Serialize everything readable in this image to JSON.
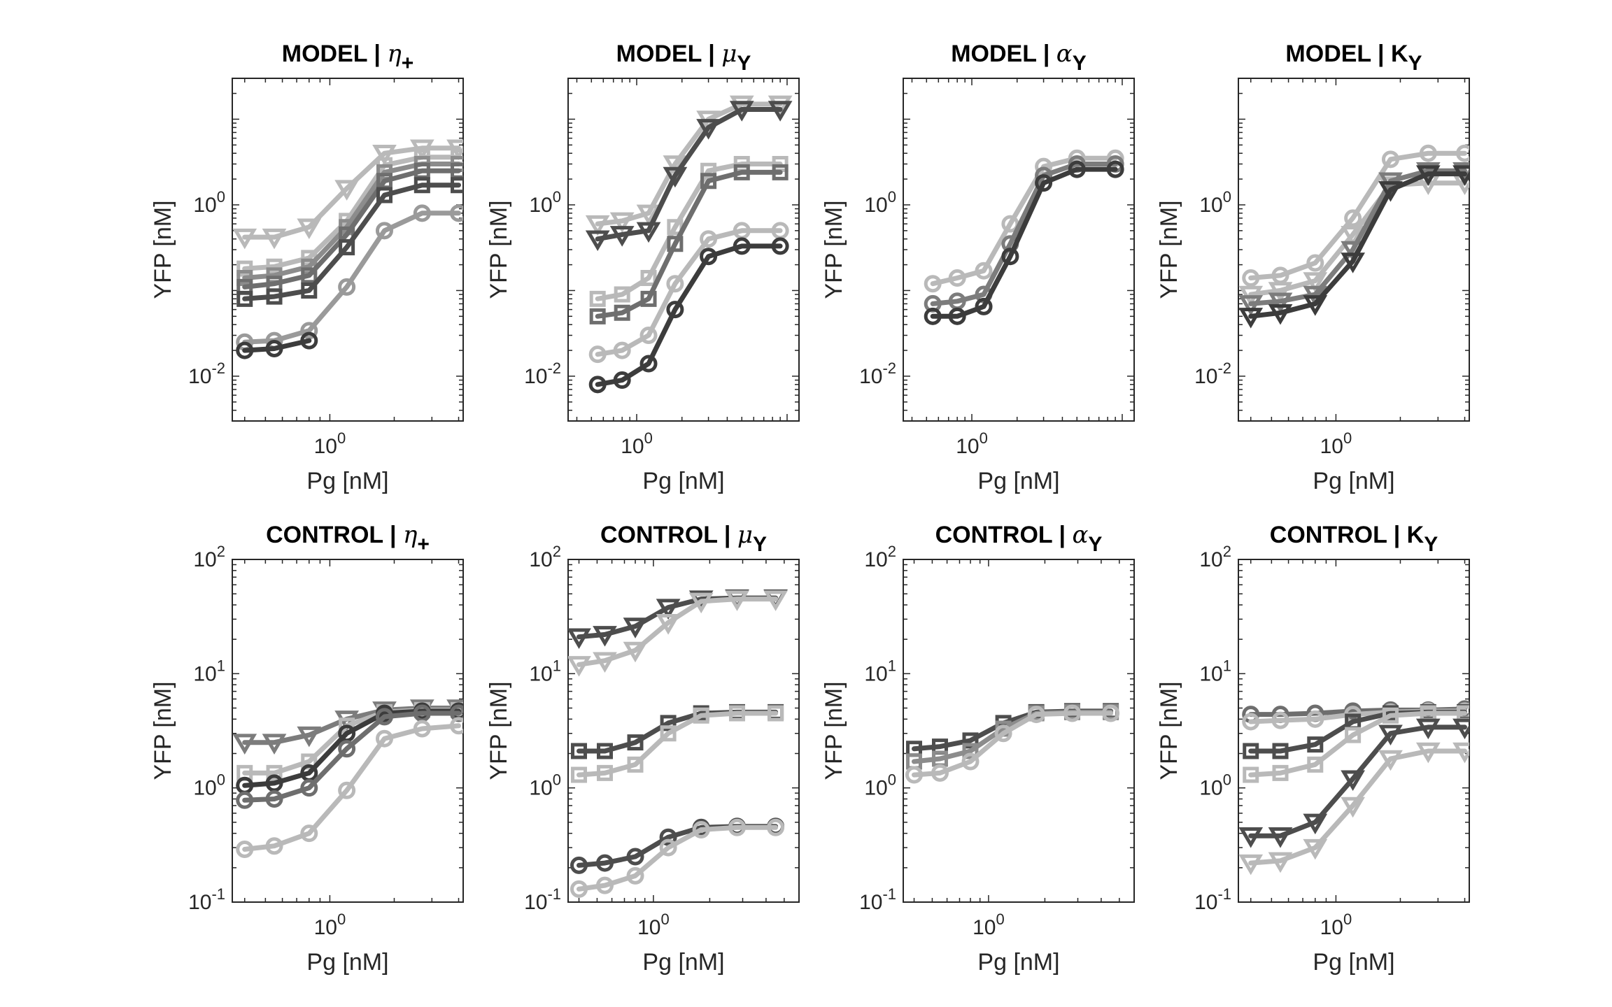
{
  "chart_data": [
    {
      "type": "line",
      "group": "MODEL",
      "title": "MODEL | ",
      "param_symbol": "η",
      "param_sub": "+",
      "xlabel": "Pg [nM]",
      "ylabel": "YFP [nM]",
      "xscale": "log",
      "yscale": "log",
      "xlim": [
        0.35,
        4.2
      ],
      "ylim": [
        0.003,
        30
      ],
      "x_ticks": [
        {
          "v": 1,
          "base": "10",
          "exp": "0"
        }
      ],
      "y_ticks": [
        {
          "v": 1,
          "base": "10",
          "exp": "0"
        },
        {
          "v": 0.01,
          "base": "10",
          "exp": "-2"
        }
      ],
      "x": [
        0.4,
        0.55,
        0.8,
        1.2,
        1.8,
        2.7,
        4.0
      ],
      "series": [
        {
          "marker": "triangle",
          "shade": "#b9b9b9",
          "values": [
            0.42,
            0.42,
            0.55,
            1.55,
            4.0,
            4.6,
            4.6
          ]
        },
        {
          "marker": "square",
          "shade": "#b9b9b9",
          "values": [
            0.18,
            0.19,
            0.24,
            0.65,
            2.9,
            3.6,
            3.6
          ]
        },
        {
          "marker": "square",
          "shade": "#8c8c8c",
          "values": [
            0.14,
            0.15,
            0.19,
            0.55,
            2.4,
            3.0,
            3.0
          ]
        },
        {
          "marker": "square",
          "shade": "#6e6e6e",
          "values": [
            0.11,
            0.12,
            0.15,
            0.45,
            1.9,
            2.5,
            2.5
          ]
        },
        {
          "marker": "square",
          "shade": "#4d4d4d",
          "values": [
            0.08,
            0.085,
            0.1,
            0.32,
            1.3,
            1.7,
            1.7
          ]
        },
        {
          "marker": "circle",
          "shade": "#9a9a9a",
          "values": [
            0.025,
            0.026,
            0.034,
            0.11,
            0.5,
            0.8,
            0.8
          ]
        },
        {
          "marker": "circle",
          "shade": "#3c3c3c",
          "values": [
            0.02,
            0.021,
            0.026,
            null,
            null,
            null,
            null
          ]
        }
      ]
    },
    {
      "type": "line",
      "group": "MODEL",
      "title": "MODEL | ",
      "param_symbol": "μ",
      "param_sub": "Y",
      "xlabel": "Pg [nM]",
      "ylabel": "YFP [nM]",
      "xscale": "log",
      "yscale": "log",
      "xlim": [
        0.35,
        12
      ],
      "ylim": [
        0.003,
        30
      ],
      "x_ticks": [
        {
          "v": 1,
          "base": "10",
          "exp": "0"
        }
      ],
      "y_ticks": [
        {
          "v": 1,
          "base": "10",
          "exp": "0"
        },
        {
          "v": 0.01,
          "base": "10",
          "exp": "-2"
        }
      ],
      "x": [
        0.4,
        0.55,
        0.8,
        1.2,
        1.8,
        3.0,
        5.0,
        9.0
      ],
      "series": [
        {
          "marker": "triangle",
          "shade": "#b9b9b9",
          "values": [
            null,
            0.6,
            0.65,
            0.8,
            3.0,
            10.0,
            15.0,
            15.0
          ]
        },
        {
          "marker": "triangle",
          "shade": "#4d4d4d",
          "values": [
            null,
            0.4,
            0.45,
            0.5,
            2.2,
            8.0,
            13.0,
            13.0
          ]
        },
        {
          "marker": "square",
          "shade": "#b9b9b9",
          "values": [
            null,
            0.08,
            0.09,
            0.14,
            0.55,
            2.5,
            3.0,
            3.0
          ]
        },
        {
          "marker": "square",
          "shade": "#6e6e6e",
          "values": [
            null,
            0.05,
            0.055,
            0.08,
            0.35,
            1.9,
            2.4,
            2.4
          ]
        },
        {
          "marker": "circle",
          "shade": "#b9b9b9",
          "values": [
            null,
            0.018,
            0.02,
            0.03,
            0.12,
            0.4,
            0.5,
            0.5
          ]
        },
        {
          "marker": "circle",
          "shade": "#3c3c3c",
          "values": [
            null,
            0.008,
            0.009,
            0.014,
            0.06,
            0.25,
            0.33,
            0.33
          ]
        }
      ]
    },
    {
      "type": "line",
      "group": "MODEL",
      "title": "MODEL | ",
      "param_symbol": "α",
      "param_sub": "Y",
      "xlabel": "Pg [nM]",
      "ylabel": "YFP [nM]",
      "xscale": "log",
      "yscale": "log",
      "xlim": [
        0.35,
        12
      ],
      "ylim": [
        0.003,
        30
      ],
      "x_ticks": [
        {
          "v": 1,
          "base": "10",
          "exp": "0"
        }
      ],
      "y_ticks": [
        {
          "v": 1,
          "base": "10",
          "exp": "0"
        },
        {
          "v": 0.01,
          "base": "10",
          "exp": "-2"
        }
      ],
      "x": [
        0.4,
        0.55,
        0.8,
        1.2,
        1.8,
        3.0,
        5.0,
        9.0
      ],
      "series": [
        {
          "marker": "circle",
          "shade": "#b9b9b9",
          "values": [
            null,
            0.12,
            0.14,
            0.17,
            0.6,
            2.8,
            3.5,
            3.5
          ]
        },
        {
          "marker": "circle",
          "shade": "#7c7c7c",
          "values": [
            null,
            0.07,
            0.075,
            0.09,
            0.35,
            2.2,
            3.0,
            3.0
          ]
        },
        {
          "marker": "circle",
          "shade": "#3c3c3c",
          "values": [
            null,
            0.05,
            0.05,
            0.065,
            0.25,
            1.8,
            2.6,
            2.6
          ]
        }
      ]
    },
    {
      "type": "line",
      "group": "MODEL",
      "title": "MODEL | ",
      "param_symbol": "K",
      "param_sub": "Y",
      "xlabel": "Pg [nM]",
      "ylabel": "YFP [nM]",
      "xscale": "log",
      "yscale": "log",
      "xlim": [
        0.35,
        4.2
      ],
      "ylim": [
        0.003,
        30
      ],
      "x_ticks": [
        {
          "v": 1,
          "base": "10",
          "exp": "0"
        }
      ],
      "y_ticks": [
        {
          "v": 1,
          "base": "10",
          "exp": "0"
        },
        {
          "v": 0.01,
          "base": "10",
          "exp": "-2"
        }
      ],
      "x": [
        0.4,
        0.55,
        0.8,
        1.2,
        1.8,
        2.7,
        4.0
      ],
      "series": [
        {
          "marker": "circle",
          "shade": "#b9b9b9",
          "values": [
            0.14,
            0.15,
            0.21,
            0.7,
            3.4,
            4.0,
            4.0
          ]
        },
        {
          "marker": "triangle",
          "shade": "#b9b9b9",
          "values": [
            0.09,
            0.1,
            0.13,
            0.45,
            1.7,
            1.8,
            1.8
          ]
        },
        {
          "marker": "triangle",
          "shade": "#7c7c7c",
          "values": [
            0.07,
            0.075,
            0.09,
            0.3,
            1.9,
            2.5,
            2.5
          ]
        },
        {
          "marker": "triangle",
          "shade": "#3c3c3c",
          "values": [
            0.05,
            0.055,
            0.07,
            0.22,
            1.5,
            2.3,
            2.3
          ]
        }
      ]
    },
    {
      "type": "line",
      "group": "CONTROL",
      "title": "CONTROL | ",
      "param_symbol": "η",
      "param_sub": "+",
      "xlabel": "Pg [nM]",
      "ylabel": "YFP [nM]",
      "xscale": "log",
      "yscale": "log",
      "xlim": [
        0.35,
        4.2
      ],
      "ylim": [
        0.1,
        100
      ],
      "x_ticks": [
        {
          "v": 1,
          "base": "10",
          "exp": "0"
        }
      ],
      "y_ticks": [
        {
          "v": 100,
          "base": "10",
          "exp": "2"
        },
        {
          "v": 10,
          "base": "10",
          "exp": "1"
        },
        {
          "v": 1,
          "base": "10",
          "exp": "0"
        },
        {
          "v": 0.1,
          "base": "10",
          "exp": "-1"
        }
      ],
      "x": [
        0.4,
        0.55,
        0.8,
        1.2,
        1.8,
        2.7,
        4.0
      ],
      "series": [
        {
          "marker": "triangle",
          "shade": "#7c7c7c",
          "values": [
            2.5,
            2.5,
            2.9,
            4.0,
            4.8,
            5.0,
            5.0
          ]
        },
        {
          "marker": "square",
          "shade": "#b9b9b9",
          "values": [
            1.35,
            1.35,
            1.7,
            3.5,
            4.6,
            4.8,
            4.8
          ]
        },
        {
          "marker": "circle",
          "shade": "#3c3c3c",
          "values": [
            1.05,
            1.1,
            1.35,
            3.0,
            4.5,
            4.7,
            4.7
          ]
        },
        {
          "marker": "circle",
          "shade": "#6e6e6e",
          "values": [
            0.78,
            0.8,
            1.0,
            2.2,
            4.2,
            4.5,
            4.5
          ]
        },
        {
          "marker": "circle",
          "shade": "#b9b9b9",
          "values": [
            0.29,
            0.31,
            0.4,
            0.95,
            2.7,
            3.3,
            3.5
          ]
        }
      ]
    },
    {
      "type": "line",
      "group": "CONTROL",
      "title": "CONTROL | ",
      "param_symbol": "μ",
      "param_sub": "Y",
      "xlabel": "Pg [nM]",
      "ylabel": "YFP [nM]",
      "xscale": "log",
      "yscale": "log",
      "xlim": [
        0.35,
        6
      ],
      "ylim": [
        0.1,
        100
      ],
      "x_ticks": [
        {
          "v": 1,
          "base": "10",
          "exp": "0"
        }
      ],
      "y_ticks": [
        {
          "v": 100,
          "base": "10",
          "exp": "2"
        },
        {
          "v": 10,
          "base": "10",
          "exp": "1"
        },
        {
          "v": 1,
          "base": "10",
          "exp": "0"
        },
        {
          "v": 0.1,
          "base": "10",
          "exp": "-1"
        }
      ],
      "x": [
        0.4,
        0.55,
        0.8,
        1.2,
        1.8,
        2.8,
        4.5
      ],
      "series": [
        {
          "marker": "triangle",
          "shade": "#4d4d4d",
          "values": [
            21,
            22,
            26,
            38,
            45,
            46,
            46
          ]
        },
        {
          "marker": "triangle",
          "shade": "#b9b9b9",
          "values": [
            12,
            13,
            16,
            28,
            43,
            45,
            45
          ]
        },
        {
          "marker": "square",
          "shade": "#4d4d4d",
          "values": [
            2.1,
            2.1,
            2.5,
            3.7,
            4.5,
            4.6,
            4.6
          ]
        },
        {
          "marker": "square",
          "shade": "#b9b9b9",
          "values": [
            1.3,
            1.35,
            1.6,
            3.0,
            4.3,
            4.5,
            4.5
          ]
        },
        {
          "marker": "circle",
          "shade": "#4d4d4d",
          "values": [
            0.21,
            0.22,
            0.25,
            0.37,
            0.45,
            0.46,
            0.46
          ]
        },
        {
          "marker": "circle",
          "shade": "#b9b9b9",
          "values": [
            0.13,
            0.14,
            0.17,
            0.3,
            0.43,
            0.45,
            0.45
          ]
        }
      ]
    },
    {
      "type": "line",
      "group": "CONTROL",
      "title": "CONTROL | ",
      "param_symbol": "α",
      "param_sub": "Y",
      "xlabel": "Pg [nM]",
      "ylabel": "YFP [nM]",
      "xscale": "log",
      "yscale": "log",
      "xlim": [
        0.35,
        6
      ],
      "ylim": [
        0.1,
        100
      ],
      "x_ticks": [
        {
          "v": 1,
          "base": "10",
          "exp": "0"
        }
      ],
      "y_ticks": [
        {
          "v": 100,
          "base": "10",
          "exp": "2"
        },
        {
          "v": 10,
          "base": "10",
          "exp": "1"
        },
        {
          "v": 1,
          "base": "10",
          "exp": "0"
        },
        {
          "v": 0.1,
          "base": "10",
          "exp": "-1"
        }
      ],
      "x": [
        0.4,
        0.55,
        0.8,
        1.2,
        1.8,
        2.8,
        4.5
      ],
      "series": [
        {
          "marker": "square",
          "shade": "#4d4d4d",
          "values": [
            2.2,
            2.3,
            2.6,
            3.7,
            4.6,
            4.7,
            4.7
          ]
        },
        {
          "marker": "square",
          "shade": "#8c8c8c",
          "values": [
            1.7,
            1.8,
            2.1,
            3.3,
            4.5,
            4.6,
            4.6
          ]
        },
        {
          "marker": "circle",
          "shade": "#b9b9b9",
          "values": [
            1.3,
            1.35,
            1.7,
            3.0,
            4.4,
            4.5,
            4.5
          ]
        }
      ]
    },
    {
      "type": "line",
      "group": "CONTROL",
      "title": "CONTROL | ",
      "param_symbol": "K",
      "param_sub": "Y",
      "xlabel": "Pg [nM]",
      "ylabel": "YFP [nM]",
      "xscale": "log",
      "yscale": "log",
      "xlim": [
        0.35,
        4.2
      ],
      "ylim": [
        0.1,
        100
      ],
      "x_ticks": [
        {
          "v": 1,
          "base": "10",
          "exp": "0"
        }
      ],
      "y_ticks": [
        {
          "v": 100,
          "base": "10",
          "exp": "2"
        },
        {
          "v": 10,
          "base": "10",
          "exp": "1"
        },
        {
          "v": 1,
          "base": "10",
          "exp": "0"
        },
        {
          "v": 0.1,
          "base": "10",
          "exp": "-1"
        }
      ],
      "x": [
        0.4,
        0.55,
        0.8,
        1.2,
        1.8,
        2.7,
        4.0
      ],
      "series": [
        {
          "marker": "circle",
          "shade": "#6e6e6e",
          "values": [
            4.4,
            4.4,
            4.5,
            4.7,
            4.8,
            4.8,
            4.9
          ]
        },
        {
          "marker": "circle",
          "shade": "#b9b9b9",
          "values": [
            3.8,
            3.9,
            4.0,
            4.4,
            4.6,
            4.7,
            4.7
          ]
        },
        {
          "marker": "square",
          "shade": "#4d4d4d",
          "values": [
            2.1,
            2.1,
            2.4,
            3.8,
            4.5,
            4.6,
            4.6
          ]
        },
        {
          "marker": "square",
          "shade": "#b9b9b9",
          "values": [
            1.3,
            1.35,
            1.6,
            2.9,
            4.3,
            4.5,
            4.5
          ]
        },
        {
          "marker": "triangle",
          "shade": "#4d4d4d",
          "values": [
            0.38,
            0.38,
            0.5,
            1.2,
            3.0,
            3.4,
            3.4
          ]
        },
        {
          "marker": "triangle",
          "shade": "#b9b9b9",
          "values": [
            0.22,
            0.23,
            0.3,
            0.7,
            1.8,
            2.1,
            2.1
          ]
        }
      ]
    }
  ]
}
